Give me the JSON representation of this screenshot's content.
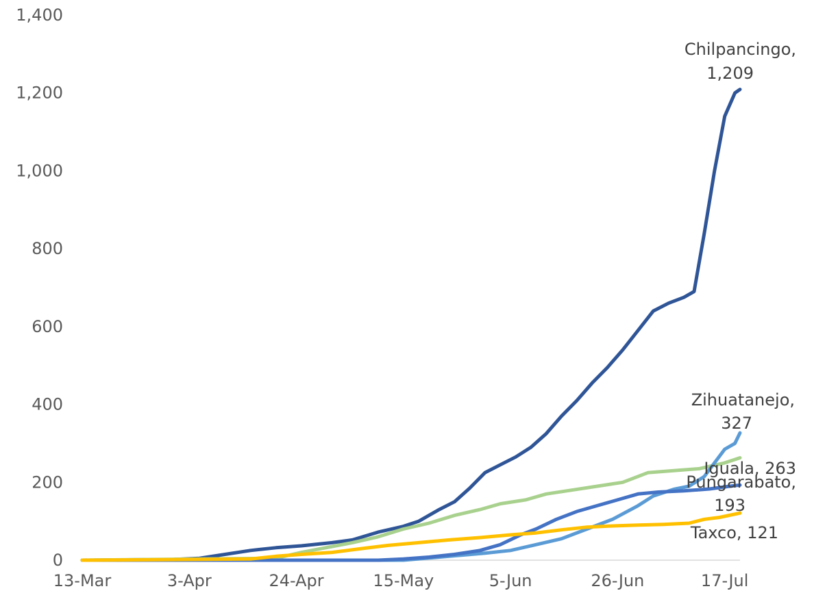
{
  "chart_data": {
    "type": "line",
    "title": "",
    "xlabel": "",
    "ylabel": "",
    "ylim": [
      0,
      1400
    ],
    "y_ticks": [
      "0",
      "200",
      "400",
      "600",
      "800",
      "1,000",
      "1,200",
      "1,400"
    ],
    "x_ticks": [
      "13-Mar",
      "3-Apr",
      "24-Apr",
      "15-May",
      "5-Jun",
      "26-Jun",
      "17-Jul"
    ],
    "x_range": [
      "13-Mar",
      "20-Jul"
    ],
    "grid": false,
    "legend": "none (direct labels at line ends)",
    "series": [
      {
        "name": "Chilpancingo",
        "end_label": "Chilpancingo,",
        "end_value_label": "1,209",
        "color": "#2f5597",
        "points": [
          [
            "13-Mar",
            0
          ],
          [
            "31-Mar",
            2
          ],
          [
            "5-Apr",
            5
          ],
          [
            "10-Apr",
            15
          ],
          [
            "15-Apr",
            25
          ],
          [
            "20-Apr",
            32
          ],
          [
            "25-Apr",
            37
          ],
          [
            "1-May",
            45
          ],
          [
            "5-May",
            52
          ],
          [
            "10-May",
            72
          ],
          [
            "15-May",
            87
          ],
          [
            "18-May",
            100
          ],
          [
            "22-May",
            130
          ],
          [
            "25-May",
            150
          ],
          [
            "28-May",
            185
          ],
          [
            "31-May",
            225
          ],
          [
            "3-Jun",
            245
          ],
          [
            "6-Jun",
            265
          ],
          [
            "9-Jun",
            290
          ],
          [
            "12-Jun",
            325
          ],
          [
            "15-Jun",
            370
          ],
          [
            "18-Jun",
            410
          ],
          [
            "21-Jun",
            455
          ],
          [
            "24-Jun",
            495
          ],
          [
            "27-Jun",
            540
          ],
          [
            "30-Jun",
            590
          ],
          [
            "3-Jul",
            640
          ],
          [
            "6-Jul",
            660
          ],
          [
            "9-Jul",
            675
          ],
          [
            "11-Jul",
            690
          ],
          [
            "13-Jul",
            840
          ],
          [
            "15-Jul",
            1000
          ],
          [
            "17-Jul",
            1140
          ],
          [
            "19-Jul",
            1200
          ],
          [
            "20-Jul",
            1209
          ]
        ]
      },
      {
        "name": "Iguala",
        "end_label": "Iguala, 263",
        "color": "#a9d18e",
        "points": [
          [
            "13-Mar",
            0
          ],
          [
            "20-Apr",
            5
          ],
          [
            "25-Apr",
            20
          ],
          [
            "1-May",
            35
          ],
          [
            "5-May",
            45
          ],
          [
            "10-May",
            60
          ],
          [
            "15-May",
            80
          ],
          [
            "20-May",
            95
          ],
          [
            "25-May",
            115
          ],
          [
            "30-May",
            130
          ],
          [
            "3-Jun",
            145
          ],
          [
            "8-Jun",
            155
          ],
          [
            "12-Jun",
            170
          ],
          [
            "17-Jun",
            180
          ],
          [
            "22-Jun",
            190
          ],
          [
            "27-Jun",
            200
          ],
          [
            "2-Jul",
            225
          ],
          [
            "7-Jul",
            230
          ],
          [
            "12-Jul",
            235
          ],
          [
            "17-Jul",
            250
          ],
          [
            "20-Jul",
            263
          ]
        ]
      },
      {
        "name": "Zihuatanejo",
        "end_label": "Zihuatanejo,",
        "end_value_label": "327",
        "color": "#5b9bd5",
        "points": [
          [
            "13-Mar",
            0
          ],
          [
            "15-May",
            0
          ],
          [
            "24-May",
            10
          ],
          [
            "31-May",
            18
          ],
          [
            "5-Jun",
            25
          ],
          [
            "10-Jun",
            40
          ],
          [
            "15-Jun",
            55
          ],
          [
            "20-Jun",
            80
          ],
          [
            "25-Jun",
            105
          ],
          [
            "30-Jun",
            140
          ],
          [
            "3-Jul",
            165
          ],
          [
            "7-Jul",
            182
          ],
          [
            "10-Jul",
            190
          ],
          [
            "13-Jul",
            215
          ],
          [
            "15-Jul",
            250
          ],
          [
            "17-Jul",
            285
          ],
          [
            "19-Jul",
            300
          ],
          [
            "20-Jul",
            327
          ]
        ]
      },
      {
        "name": "Pungarabato",
        "end_label": "Pungarabato,",
        "end_value_label": "193",
        "color": "#4472c4",
        "points": [
          [
            "13-Mar",
            0
          ],
          [
            "10-May",
            0
          ],
          [
            "15-May",
            3
          ],
          [
            "20-May",
            8
          ],
          [
            "25-May",
            15
          ],
          [
            "30-May",
            25
          ],
          [
            "3-Jun",
            40
          ],
          [
            "7-Jun",
            65
          ],
          [
            "10-Jun",
            80
          ],
          [
            "14-Jun",
            105
          ],
          [
            "18-Jun",
            125
          ],
          [
            "22-Jun",
            140
          ],
          [
            "26-Jun",
            155
          ],
          [
            "30-Jun",
            170
          ],
          [
            "4-Jul",
            175
          ],
          [
            "9-Jul",
            178
          ],
          [
            "14-Jul",
            183
          ],
          [
            "18-Jul",
            190
          ],
          [
            "20-Jul",
            193
          ]
        ]
      },
      {
        "name": "Taxco",
        "end_label": "Taxco, 121",
        "color": "#ffc000",
        "points": [
          [
            "13-Mar",
            0
          ],
          [
            "15-Apr",
            3
          ],
          [
            "20-Apr",
            10
          ],
          [
            "25-Apr",
            15
          ],
          [
            "1-May",
            20
          ],
          [
            "7-May",
            30
          ],
          [
            "12-May",
            38
          ],
          [
            "18-May",
            45
          ],
          [
            "24-May",
            52
          ],
          [
            "30-May",
            58
          ],
          [
            "5-Jun",
            65
          ],
          [
            "10-Jun",
            70
          ],
          [
            "15-Jun",
            78
          ],
          [
            "20-Jun",
            85
          ],
          [
            "25-Jun",
            88
          ],
          [
            "30-Jun",
            90
          ],
          [
            "5-Jul",
            92
          ],
          [
            "10-Jul",
            95
          ],
          [
            "13-Jul",
            105
          ],
          [
            "16-Jul",
            110
          ],
          [
            "20-Jul",
            121
          ]
        ]
      }
    ]
  }
}
